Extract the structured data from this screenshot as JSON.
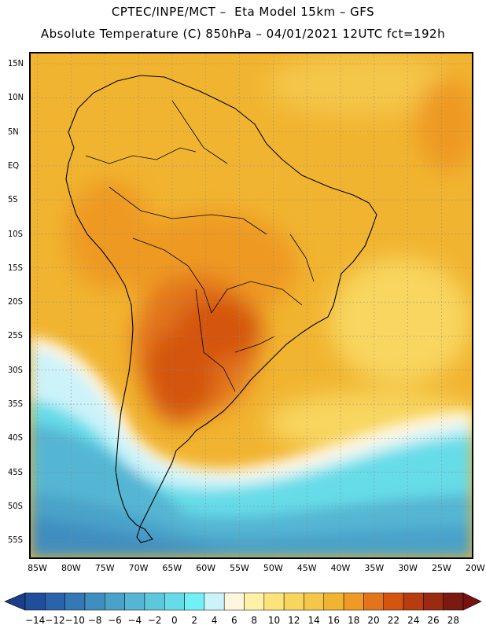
{
  "header": {
    "title_line1": "CPTEC/INPE/MCT –  Eta Model 15km – GFS",
    "title_line2": "Absolute Temperature (C) 850hPa – 04/01/2021 12UTC fct=192h"
  },
  "map": {
    "lat_labels": [
      "15N",
      "10N",
      "5N",
      "EQ",
      "5S",
      "10S",
      "15S",
      "20S",
      "25S",
      "30S",
      "35S",
      "40S",
      "45S",
      "50S",
      "55S"
    ],
    "lon_labels": [
      "85W",
      "80W",
      "75W",
      "70W",
      "65W",
      "60W",
      "55W",
      "50W",
      "45W",
      "40W",
      "35W",
      "30W",
      "25W",
      "20W"
    ],
    "lat_values": [
      15,
      10,
      5,
      0,
      -5,
      -10,
      -15,
      -20,
      -25,
      -30,
      -35,
      -40,
      -45,
      -50,
      -55
    ],
    "lon_values": [
      -85,
      -80,
      -75,
      -70,
      -65,
      -60,
      -55,
      -50,
      -45,
      -40,
      -35,
      -30,
      -25,
      -20
    ],
    "lat_range": [
      -57.5,
      16.5
    ],
    "lon_range": [
      -86,
      -20.5
    ]
  },
  "colorbar": {
    "labels": [
      "-14",
      "-12",
      "-10",
      "-8",
      "-6",
      "-4",
      "-2",
      "0",
      "2",
      "4",
      "6",
      "8",
      "10",
      "12",
      "14",
      "16",
      "18",
      "20",
      "22",
      "24",
      "26",
      "28"
    ],
    "colors": {
      "below": "#1b3d8c",
      "above": "#7a1010",
      "bins": [
        "#1f4f9a",
        "#2a64a8",
        "#3478b4",
        "#3f8ec0",
        "#4aa2c9",
        "#55b6d3",
        "#5cc8dc",
        "#66dce8",
        "#73f0f5",
        "#ccf3fa",
        "#fff6e0",
        "#fff1a8",
        "#fde47a",
        "#f8d65e",
        "#f4c64a",
        "#f1b430",
        "#ee9a24",
        "#e2741a",
        "#d45410",
        "#b83c10",
        "#9a2a10",
        "#7a1a10"
      ]
    }
  }
}
